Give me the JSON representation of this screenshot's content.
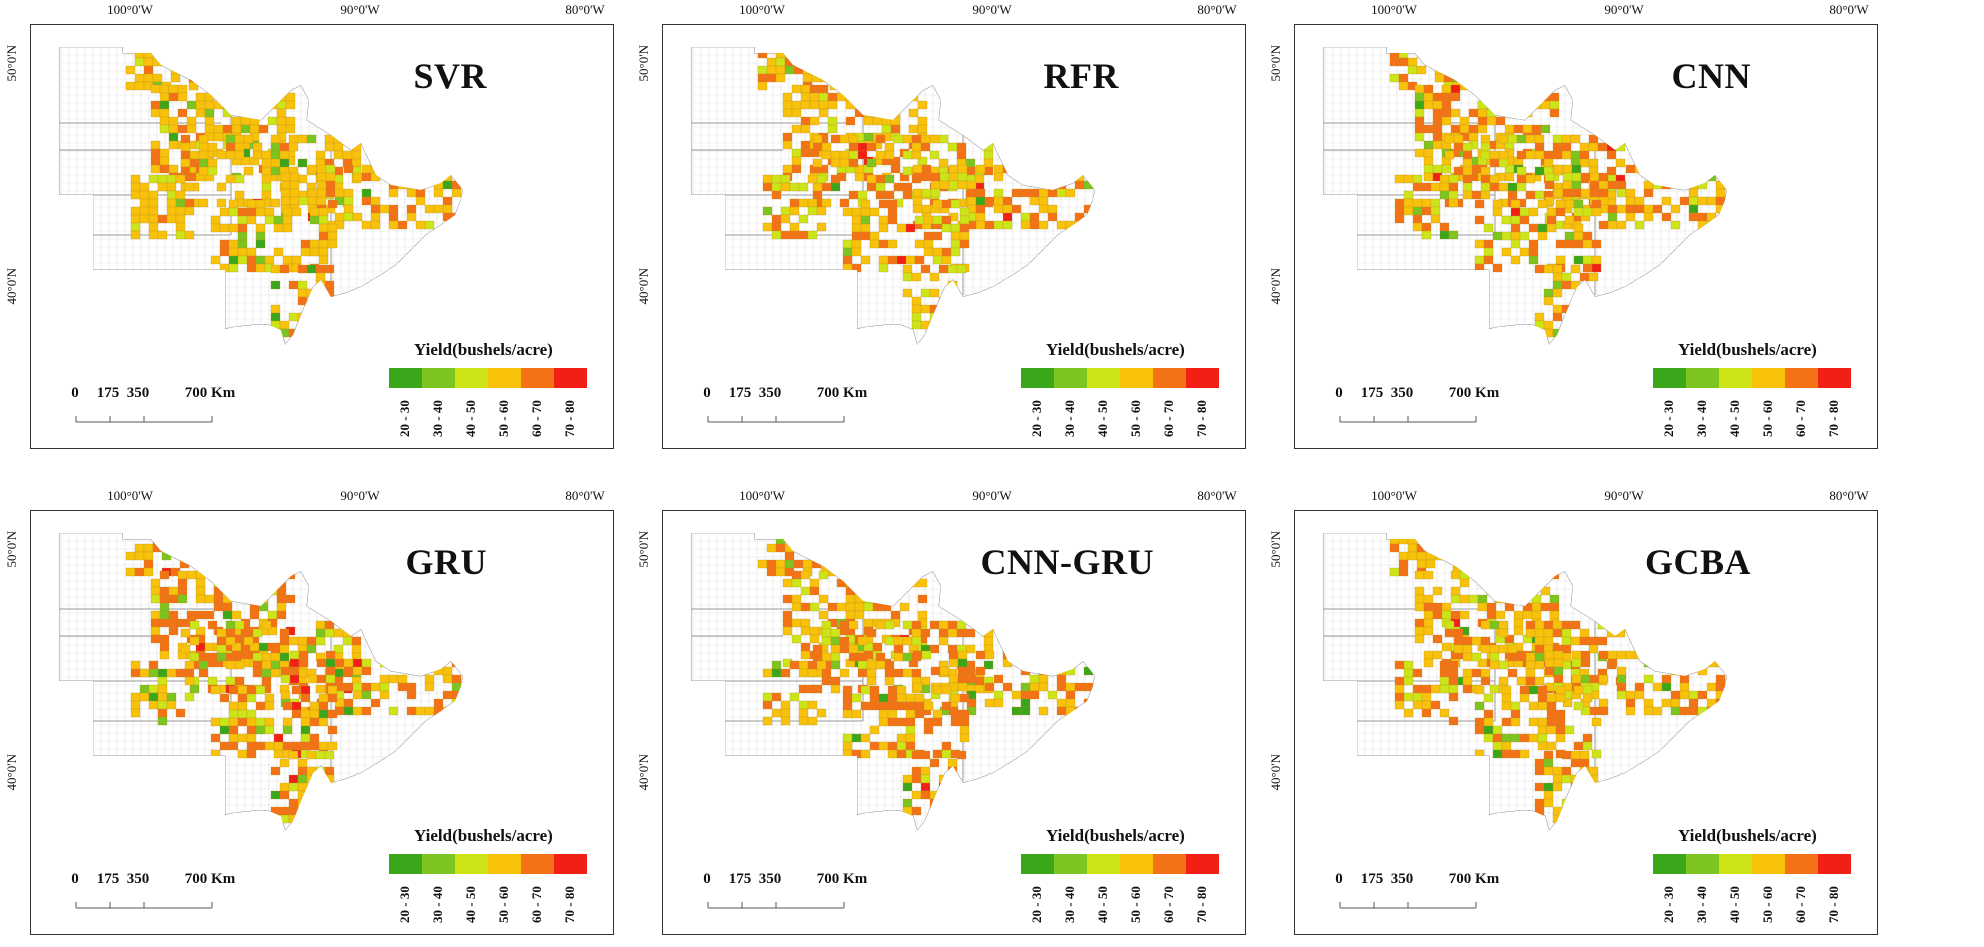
{
  "figure": {
    "panels": [
      {
        "title": "SVR"
      },
      {
        "title": "RFR"
      },
      {
        "title": "CNN"
      },
      {
        "title": "GRU"
      },
      {
        "title": "CNN-GRU"
      },
      {
        "title": "GCBA"
      }
    ],
    "lon_labels": [
      "100°0'W",
      "90°0'W",
      "80°0'W"
    ],
    "lat_labels": [
      "50°0'N",
      "40°0'N"
    ],
    "scale": {
      "labels": [
        "0",
        "175",
        "350",
        "700 Km"
      ]
    },
    "legend": {
      "title": "Yield(bushels/acre)",
      "classes": [
        {
          "label": "20 - 30",
          "color": "#3aa619"
        },
        {
          "label": "30 - 40",
          "color": "#7cc41f"
        },
        {
          "label": "40 - 50",
          "color": "#cde518"
        },
        {
          "label": "50 - 60",
          "color": "#f8c20a"
        },
        {
          "label": "60 - 70",
          "color": "#f47216"
        },
        {
          "label": "70 - 80",
          "color": "#f21f15"
        }
      ]
    }
  }
}
